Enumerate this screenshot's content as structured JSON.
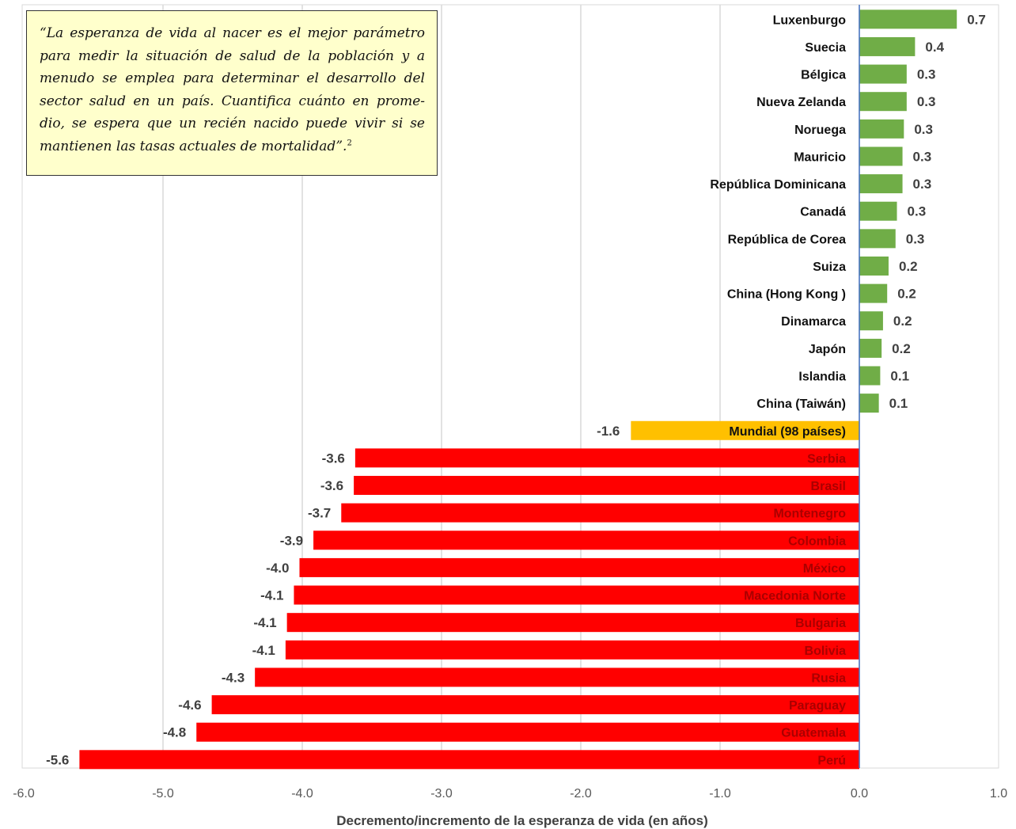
{
  "chart_data": {
    "type": "bar",
    "orientation": "horizontal",
    "xlabel": "Decremento/incremento de la esperanza de vida (en años)",
    "xlim": [
      -6.0,
      1.0
    ],
    "xticks": [
      "-6.0",
      "-5.0",
      "-4.0",
      "-3.0",
      "-2.0",
      "-1.0",
      "0.0",
      "1.0"
    ],
    "grid": "vertical",
    "colors": {
      "increase": "#70ad47",
      "world": "#ffc000",
      "decrease": "#ff0000"
    },
    "bars": [
      {
        "label": "Luxenburgo",
        "value": 0.7,
        "text": "0.7",
        "group": "increase"
      },
      {
        "label": "Suecia",
        "value": 0.4,
        "text": "0.4",
        "group": "increase"
      },
      {
        "label": "Bélgica",
        "value": 0.34,
        "text": "0.3",
        "group": "increase"
      },
      {
        "label": "Nueva Zelanda",
        "value": 0.34,
        "text": "0.3",
        "group": "increase"
      },
      {
        "label": "Noruega",
        "value": 0.32,
        "text": "0.3",
        "group": "increase"
      },
      {
        "label": "Mauricio",
        "value": 0.31,
        "text": "0.3",
        "group": "increase"
      },
      {
        "label": "República Dominicana",
        "value": 0.31,
        "text": "0.3",
        "group": "increase"
      },
      {
        "label": "Canadá",
        "value": 0.27,
        "text": "0.3",
        "group": "increase"
      },
      {
        "label": "República de Corea",
        "value": 0.26,
        "text": "0.3",
        "group": "increase"
      },
      {
        "label": "Suiza",
        "value": 0.21,
        "text": "0.2",
        "group": "increase"
      },
      {
        "label": "China (Hong Kong )",
        "value": 0.2,
        "text": "0.2",
        "group": "increase"
      },
      {
        "label": "Dinamarca",
        "value": 0.17,
        "text": "0.2",
        "group": "increase"
      },
      {
        "label": "Japón",
        "value": 0.16,
        "text": "0.2",
        "group": "increase"
      },
      {
        "label": "Islandia",
        "value": 0.15,
        "text": "0.1",
        "group": "increase"
      },
      {
        "label": "China (Taiwán)",
        "value": 0.14,
        "text": "0.1",
        "group": "increase"
      },
      {
        "label": "Mundial (98 países)",
        "value": -1.64,
        "text": "-1.6",
        "group": "world"
      },
      {
        "label": "Serbia",
        "value": -3.62,
        "text": "-3.6",
        "group": "decrease"
      },
      {
        "label": "Brasil",
        "value": -3.63,
        "text": "-3.6",
        "group": "decrease"
      },
      {
        "label": "Montenegro",
        "value": -3.72,
        "text": "-3.7",
        "group": "decrease"
      },
      {
        "label": "Colombia",
        "value": -3.92,
        "text": "-3.9",
        "group": "decrease"
      },
      {
        "label": "México",
        "value": -4.02,
        "text": "-4.0",
        "group": "decrease"
      },
      {
        "label": "Macedonia Norte",
        "value": -4.06,
        "text": "-4.1",
        "group": "decrease"
      },
      {
        "label": "Bulgaria",
        "value": -4.11,
        "text": "-4.1",
        "group": "decrease"
      },
      {
        "label": "Bolivia",
        "value": -4.12,
        "text": "-4.1",
        "group": "decrease"
      },
      {
        "label": "Rusia",
        "value": -4.34,
        "text": "-4.3",
        "group": "decrease"
      },
      {
        "label": "Paraguay",
        "value": -4.65,
        "text": "-4.6",
        "group": "decrease"
      },
      {
        "label": "Guatemala",
        "value": -4.76,
        "text": "-4.8",
        "group": "decrease"
      },
      {
        "label": "Perú",
        "value": -5.6,
        "text": "-5.6",
        "group": "decrease"
      }
    ]
  },
  "quote": {
    "open": "“",
    "text": "La esperanza de vida al nacer es el mejor parámetro para medir la situación de salud de la población y a menudo se emplea para determinar el desarrollo del sector salud en un país. Cuantifica cuánto en prome-dio, se espera que un recién nacido puede vivir si se mantienen las tasas actuales de mortalidad",
    "close": "”.",
    "footnote": "2"
  }
}
